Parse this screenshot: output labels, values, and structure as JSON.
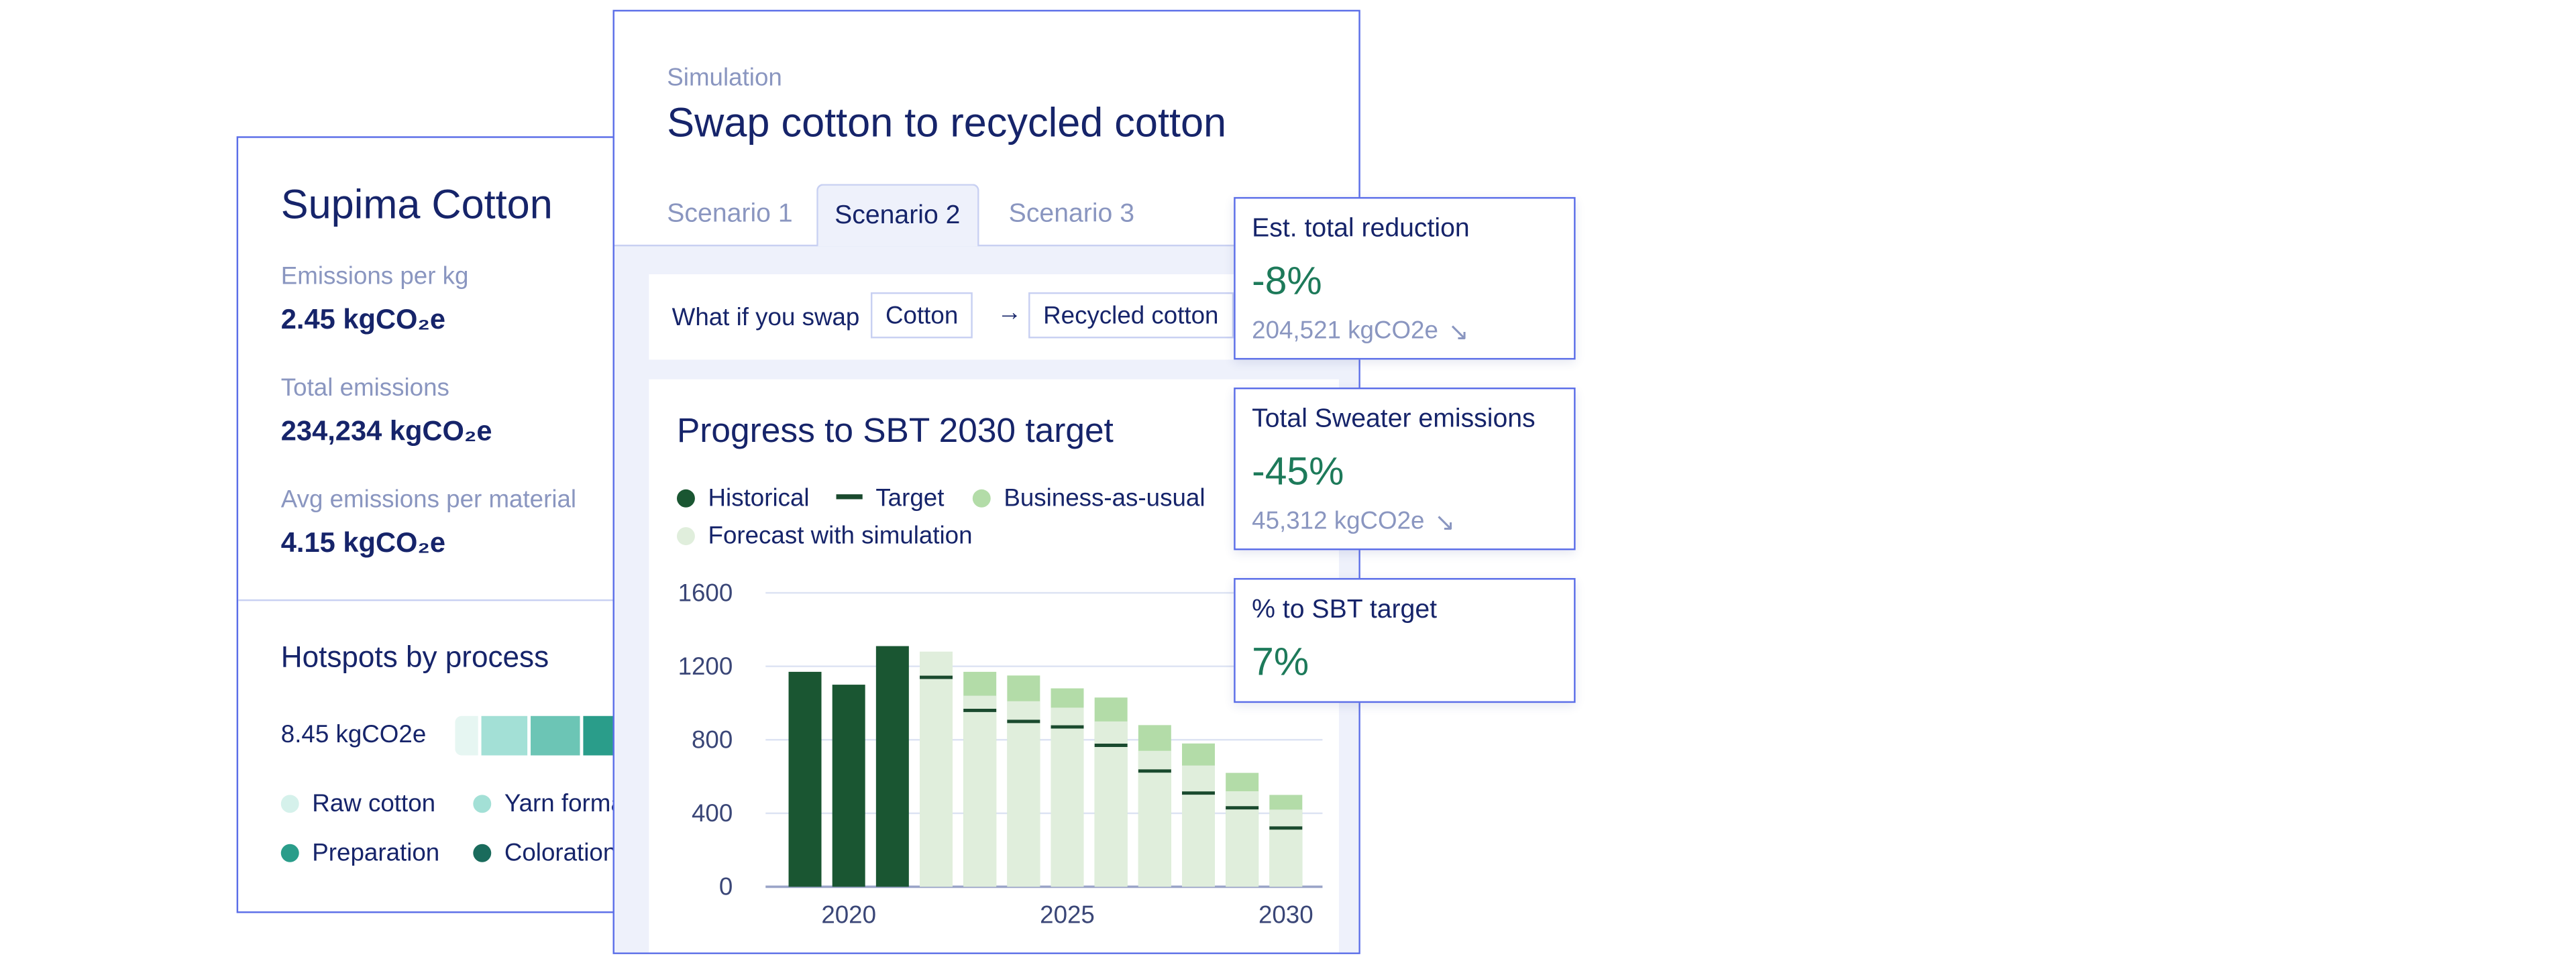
{
  "material_card": {
    "title": "Supima Cotton",
    "metrics": [
      {
        "label": "Emissions per kg",
        "value": "2.45 kgCO₂e"
      },
      {
        "label": "Total emissions",
        "value": "234,234 kgCO₂e"
      },
      {
        "label": "Avg emissions per material",
        "value": "4.15 kgCO₂e"
      }
    ],
    "hotspots": {
      "title": "Hotspots by process",
      "total": "8.45 kgCO2e",
      "legend": [
        {
          "name": "Raw cotton",
          "color": "#d5f1eb"
        },
        {
          "name": "Yarn formation",
          "color": "#a3e0d6"
        },
        {
          "name": "Preparation",
          "color": "#2a9d8a"
        },
        {
          "name": "Coloration",
          "color": "#1a6b5c"
        }
      ]
    }
  },
  "simulation": {
    "eyebrow": "Simulation",
    "title": "Swap cotton to recycled cotton",
    "tabs": [
      "Scenario 1",
      "Scenario 2",
      "Scenario 3"
    ],
    "active_tab": 1,
    "swap": {
      "label": "What if you swap",
      "from": "Cotton",
      "to": "Recycled cotton"
    }
  },
  "chart_data": {
    "type": "bar",
    "title": "Progress to SBT 2030 target",
    "x": [
      2019,
      2020,
      2021,
      2022,
      2023,
      2024,
      2025,
      2026,
      2027,
      2028,
      2029,
      2030
    ],
    "xlim": [
      2018.5,
      2030.5
    ],
    "xticks": [
      2020,
      2025,
      2030
    ],
    "ylim": [
      0,
      1600
    ],
    "yticks": [
      0,
      400,
      800,
      1200,
      1600
    ],
    "grid": true,
    "series": [
      {
        "name": "Historical",
        "color": "#1a5632",
        "values": [
          1170,
          1100,
          1310,
          null,
          null,
          null,
          null,
          null,
          null,
          null,
          null,
          null
        ]
      },
      {
        "name": "Target",
        "color": "#1a4a2e",
        "mark": "tick",
        "values": [
          null,
          null,
          null,
          1140,
          960,
          900,
          870,
          770,
          630,
          510,
          430,
          320
        ]
      },
      {
        "name": "Business-as-usual",
        "color": "#b3dca8",
        "values": [
          null,
          null,
          null,
          null,
          1170,
          1150,
          1080,
          1030,
          880,
          780,
          620,
          500
        ]
      },
      {
        "name": "Forecast with simulation",
        "color": "#e0eedc",
        "values": [
          null,
          null,
          null,
          1280,
          1040,
          1010,
          975,
          900,
          740,
          660,
          520,
          420
        ]
      }
    ]
  },
  "kpis": [
    {
      "label": "Est. total reduction",
      "value": "-8%",
      "detail": "204,521 kgCO2e"
    },
    {
      "label": "Total Sweater emissions",
      "value": "-45%",
      "detail": "45,312 kgCO2e"
    },
    {
      "label": "% to SBT target",
      "value": "7%"
    }
  ]
}
